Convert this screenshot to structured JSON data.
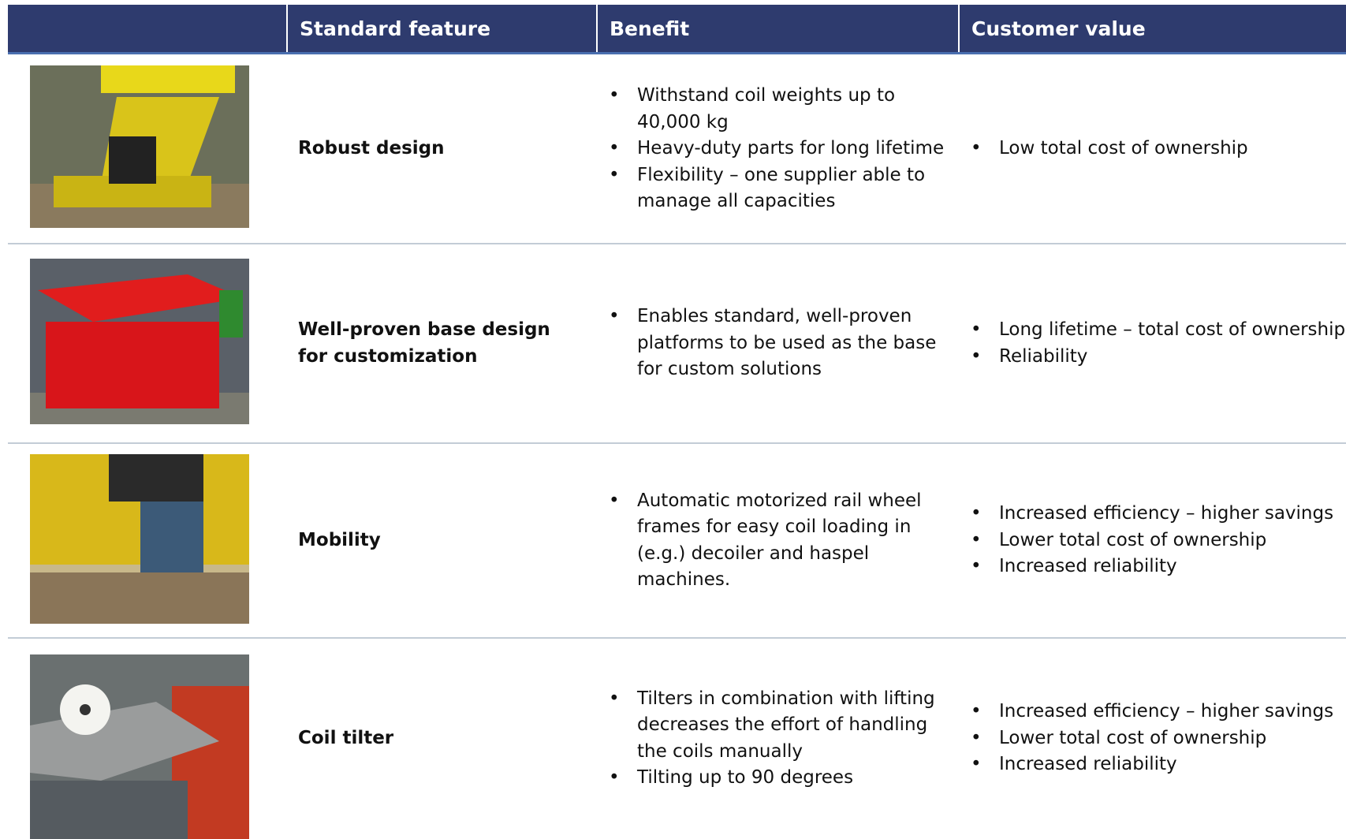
{
  "header": {
    "columns": [
      "Standard feature",
      "Benefit",
      "Customer value"
    ]
  },
  "table": {
    "rows": [
      {
        "feature": "Robust design",
        "benefits": [
          "Withstand coil weights up to 40,000 kg",
          "Heavy-duty parts for long lifetime",
          "Flexibility – one supplier able to manage all capacities"
        ],
        "values": [
          "Low total cost of ownership"
        ]
      },
      {
        "feature": "Well-proven base design for customization",
        "benefits": [
          "Enables standard, well-proven platforms to be used as the base for custom solutions"
        ],
        "values": [
          "Long lifetime – total cost of ownership",
          "Reliability"
        ]
      },
      {
        "feature": "Mobility",
        "benefits": [
          "Automatic motorized rail wheel frames for easy coil loading in (e.g.) decoiler and haspel machines."
        ],
        "values": [
          "Increased efficiency – higher savings",
          "Lower total cost of ownership",
          "Increased reliability"
        ]
      },
      {
        "feature": "Coil tilter",
        "benefits": [
          "Tilters in combination with lifting decreases the effort of handling the coils manually",
          "Tilting up to 90 degrees"
        ],
        "values": [
          "Increased efficiency – higher savings",
          "Lower total cost of ownership",
          "Increased reliability"
        ]
      }
    ]
  }
}
